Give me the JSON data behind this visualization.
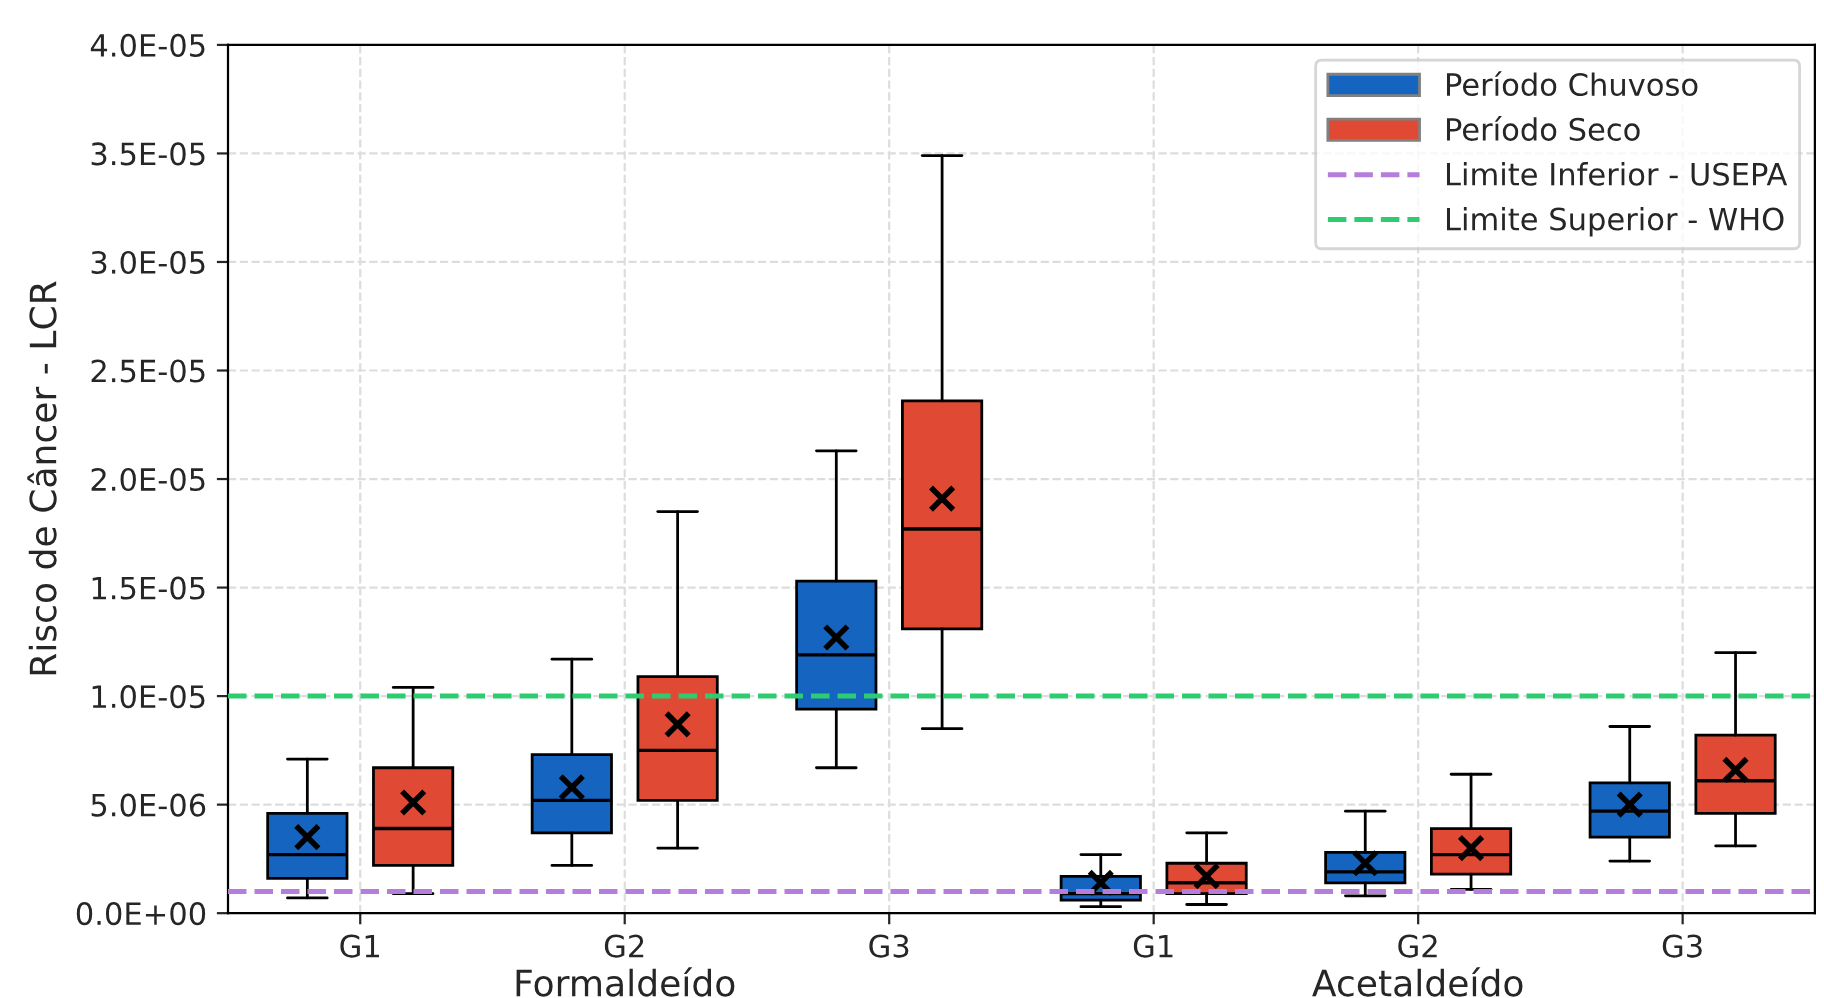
{
  "chart_data": {
    "type": "box",
    "ylabel": "Risco de Câncer - LCR",
    "categories": [
      "G1",
      "G2",
      "G3",
      "G1",
      "G2",
      "G3"
    ],
    "annotations": [
      "Formaldeído",
      "Acetaldeído"
    ],
    "series": [
      {
        "name": "Período Chuvoso",
        "color": "#1565c0",
        "boxes": [
          {
            "low": 7e-07,
            "q1": 1.6e-06,
            "median": 2.7e-06,
            "q3": 4.6e-06,
            "high": 7.1e-06,
            "mean": 3.5e-06
          },
          {
            "low": 2.2e-06,
            "q1": 3.7e-06,
            "median": 5.2e-06,
            "q3": 7.3e-06,
            "high": 1.17e-05,
            "mean": 5.8e-06
          },
          {
            "low": 6.7e-06,
            "q1": 9.4e-06,
            "median": 1.19e-05,
            "q3": 1.53e-05,
            "high": 2.13e-05,
            "mean": 1.27e-05
          },
          {
            "low": 3e-07,
            "q1": 6e-07,
            "median": 9e-07,
            "q3": 1.7e-06,
            "high": 2.7e-06,
            "mean": 1.4e-06
          },
          {
            "low": 8e-07,
            "q1": 1.4e-06,
            "median": 1.9e-06,
            "q3": 2.8e-06,
            "high": 4.7e-06,
            "mean": 2.3e-06
          },
          {
            "low": 2.4e-06,
            "q1": 3.5e-06,
            "median": 4.7e-06,
            "q3": 6e-06,
            "high": 8.6e-06,
            "mean": 5e-06
          }
        ]
      },
      {
        "name": "Período Seco",
        "color": "#e04a35",
        "boxes": [
          {
            "low": 9e-07,
            "q1": 2.2e-06,
            "median": 3.9e-06,
            "q3": 6.7e-06,
            "high": 1.04e-05,
            "mean": 5.1e-06
          },
          {
            "low": 3e-06,
            "q1": 5.2e-06,
            "median": 7.5e-06,
            "q3": 1.09e-05,
            "high": 1.85e-05,
            "mean": 8.7e-06
          },
          {
            "low": 8.5e-06,
            "q1": 1.31e-05,
            "median": 1.77e-05,
            "q3": 2.36e-05,
            "high": 3.49e-05,
            "mean": 1.91e-05
          },
          {
            "low": 4e-07,
            "q1": 9e-07,
            "median": 1.4e-06,
            "q3": 2.3e-06,
            "high": 3.7e-06,
            "mean": 1.7e-06
          },
          {
            "low": 1.1e-06,
            "q1": 1.8e-06,
            "median": 2.7e-06,
            "q3": 3.9e-06,
            "high": 6.4e-06,
            "mean": 3e-06
          },
          {
            "low": 3.1e-06,
            "q1": 4.6e-06,
            "median": 6.1e-06,
            "q3": 8.2e-06,
            "high": 1.2e-05,
            "mean": 6.6e-06
          }
        ]
      }
    ],
    "ref_lines": [
      {
        "axis": "y",
        "value": 1e-06,
        "label": "Limite Inferior - USEPA",
        "color": "#b57edc",
        "line_style": "dashed"
      },
      {
        "axis": "y",
        "value": 1e-05,
        "label": "Limite Superior - WHO",
        "color": "#2ecc71",
        "line_style": "dashed"
      }
    ],
    "ylim": [
      0,
      4e-05
    ],
    "yticks": [
      {
        "value": 0,
        "label": "0.0E+00"
      },
      {
        "value": 5e-06,
        "label": "5.0E-06"
      },
      {
        "value": 1e-05,
        "label": "1.0E-05"
      },
      {
        "value": 1.5e-05,
        "label": "1.5E-05"
      },
      {
        "value": 2e-05,
        "label": "2.0E-05"
      },
      {
        "value": 2.5e-05,
        "label": "2.5E-05"
      },
      {
        "value": 3e-05,
        "label": "3.0E-05"
      },
      {
        "value": 3.5e-05,
        "label": "3.5E-05"
      },
      {
        "value": 4e-05,
        "label": "4.0E-05"
      }
    ],
    "grid": true,
    "legend": "top right"
  }
}
